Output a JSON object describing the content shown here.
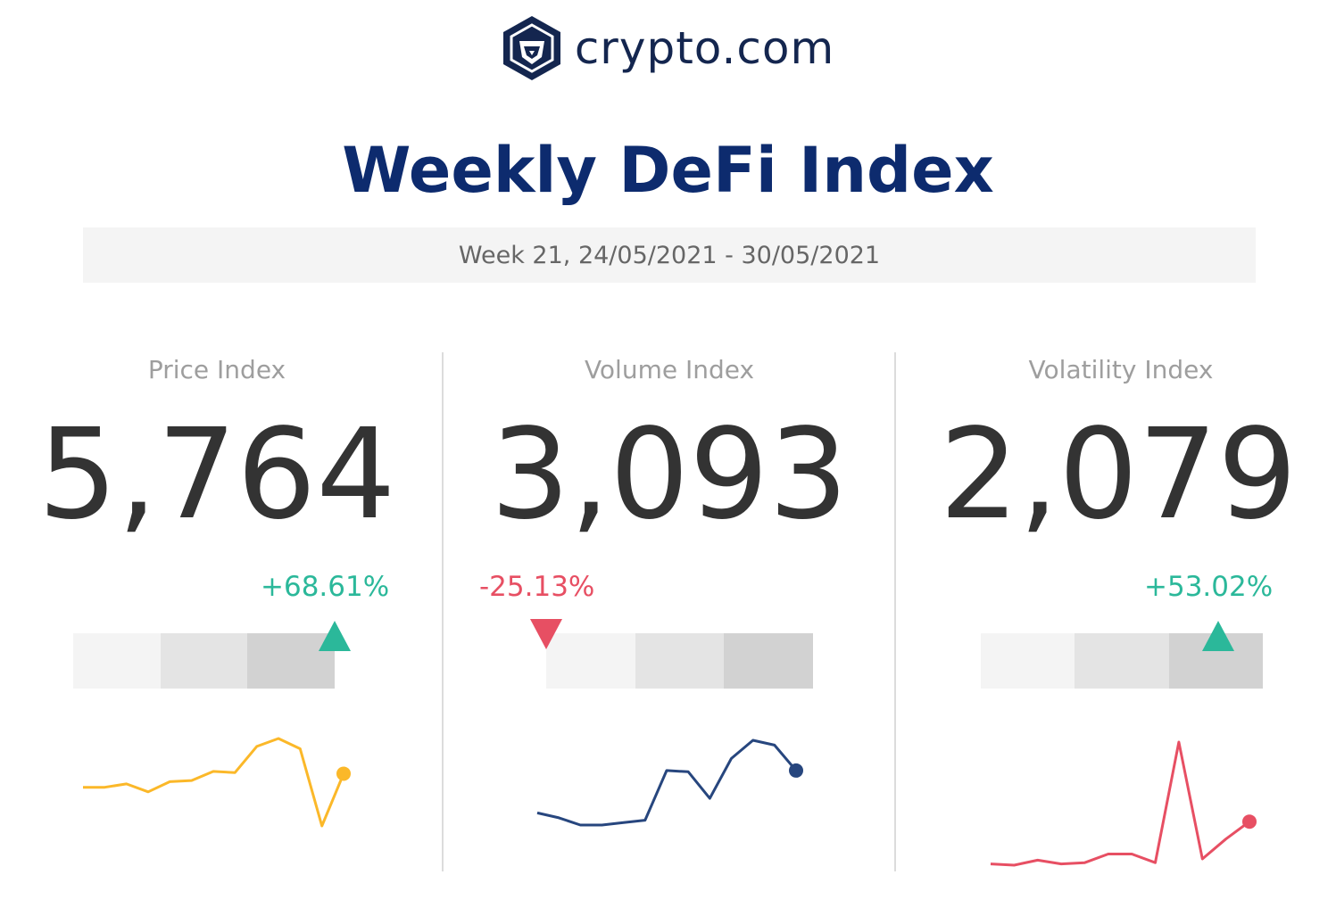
{
  "brand": {
    "name": "crypto.com",
    "logo_icon": "crypto-com-lion-hexagon-icon"
  },
  "title": "Weekly DeFi Index",
  "subtitle": "Week 21, 24/05/2021 - 30/05/2021",
  "colors": {
    "navy": "#0d2b6e",
    "positive": "#2bb89a",
    "negative": "#e74f63",
    "price_line": "#fbb829",
    "volume_line": "#27467e",
    "volatility_line": "#e74f63"
  },
  "chart_data": [
    {
      "type": "line",
      "title": "Price Index",
      "value": "5,764",
      "change": "+68.61%",
      "direction": "up",
      "gauge_level": 1.0,
      "series": [
        {
          "values": [
            0.18,
            0.18,
            0.21,
            0.14,
            0.23,
            0.24,
            0.32,
            0.31,
            0.54,
            0.61,
            0.52,
            -0.16,
            0.3
          ]
        }
      ]
    },
    {
      "type": "line",
      "title": "Volume Index",
      "value": "3,093",
      "change": "-25.13%",
      "direction": "down",
      "gauge_level": 0.0,
      "series": [
        {
          "values": [
            0.1,
            0.06,
            0.0,
            0.0,
            0.02,
            0.04,
            0.45,
            0.44,
            0.22,
            0.55,
            0.7,
            0.66,
            0.45
          ]
        }
      ]
    },
    {
      "type": "line",
      "title": "Volatility Index",
      "value": "2,079",
      "change": "+53.02%",
      "direction": "up",
      "gauge_level": 0.85,
      "series": [
        {
          "values": [
            0.02,
            0.01,
            0.05,
            0.02,
            0.03,
            0.1,
            0.1,
            0.03,
            1.0,
            0.06,
            0.22,
            0.36
          ]
        }
      ]
    }
  ]
}
